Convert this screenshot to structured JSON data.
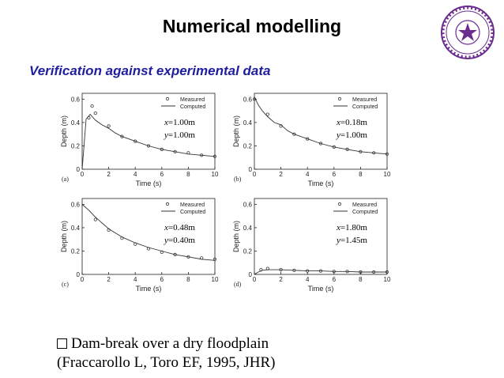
{
  "slide": {
    "title": "Numerical modelling",
    "subtitle": "Verification against experimental data",
    "bullet_line1": "Dam-break over a dry floodplain",
    "bullet_line2": "(Fraccarollo L, Toro EF, 1995, JHR)",
    "seal_icon": "university-seal-icon",
    "colors": {
      "subtitle": "#1f1f9e",
      "seal": "#6b2c8f"
    }
  },
  "chart_data": [
    {
      "type": "line",
      "panel": "(a)",
      "xlabel": "Time (s)",
      "ylabel": "Depth (m)",
      "xlim": [
        0,
        10
      ],
      "ylim": [
        0,
        0.65
      ],
      "xticks": [
        0,
        2,
        4,
        6,
        8,
        10
      ],
      "yticks": [
        0,
        0.2,
        0.4,
        0.6
      ],
      "legend_position": "top-right",
      "annotation": [
        "x=1.00m",
        "y=1.00m"
      ],
      "series": [
        {
          "name": "Measured",
          "marker": "circle",
          "x": [
            0.5,
            0.75,
            1,
            2,
            3,
            4,
            5,
            6,
            7,
            8,
            9,
            10
          ],
          "y": [
            0.44,
            0.54,
            0.48,
            0.37,
            0.28,
            0.24,
            0.2,
            0.17,
            0.15,
            0.14,
            0.12,
            0.11
          ]
        },
        {
          "name": "Computed",
          "style": "line",
          "x": [
            0,
            0.3,
            0.6,
            1,
            1.5,
            2,
            2.5,
            3,
            3.5,
            4,
            5,
            6,
            7,
            8,
            9,
            10
          ],
          "y": [
            0.0,
            0.43,
            0.47,
            0.42,
            0.38,
            0.35,
            0.31,
            0.28,
            0.26,
            0.24,
            0.2,
            0.17,
            0.15,
            0.13,
            0.12,
            0.11
          ]
        }
      ]
    },
    {
      "type": "line",
      "panel": "(b)",
      "xlabel": "Time (s)",
      "ylabel": "Depth (m)",
      "xlim": [
        0,
        10
      ],
      "ylim": [
        0,
        0.65
      ],
      "xticks": [
        0,
        2,
        4,
        6,
        8,
        10
      ],
      "yticks": [
        0,
        0.2,
        0.4,
        0.6
      ],
      "legend_position": "top-right",
      "annotation": [
        "x=0.18m",
        "y=1.00m"
      ],
      "series": [
        {
          "name": "Measured",
          "marker": "circle",
          "x": [
            0,
            1,
            2,
            3,
            4,
            5,
            6,
            7,
            8,
            9,
            10
          ],
          "y": [
            0.6,
            0.47,
            0.37,
            0.3,
            0.26,
            0.22,
            0.19,
            0.17,
            0.15,
            0.14,
            0.13
          ]
        },
        {
          "name": "Computed",
          "style": "line",
          "x": [
            0,
            0.3,
            0.6,
            1,
            1.5,
            2,
            2.5,
            3,
            3.5,
            4,
            5,
            6,
            7,
            8,
            9,
            10
          ],
          "y": [
            0.62,
            0.55,
            0.5,
            0.45,
            0.4,
            0.38,
            0.33,
            0.3,
            0.28,
            0.26,
            0.22,
            0.19,
            0.17,
            0.15,
            0.14,
            0.13
          ]
        }
      ]
    },
    {
      "type": "line",
      "panel": "(c)",
      "xlabel": "Time (s)",
      "ylabel": "Depth (m)",
      "xlim": [
        0,
        10
      ],
      "ylim": [
        0,
        0.65
      ],
      "xticks": [
        0,
        2,
        4,
        6,
        8,
        10
      ],
      "yticks": [
        0,
        0.2,
        0.4,
        0.6
      ],
      "legend_position": "top-right",
      "annotation": [
        "x=0.48m",
        "y=0.40m"
      ],
      "series": [
        {
          "name": "Measured",
          "marker": "circle",
          "x": [
            1,
            2,
            3,
            4,
            5,
            6,
            7,
            8,
            9,
            10
          ],
          "y": [
            0.47,
            0.38,
            0.31,
            0.26,
            0.22,
            0.19,
            0.17,
            0.15,
            0.14,
            0.13
          ]
        },
        {
          "name": "Computed",
          "style": "line",
          "x": [
            0,
            0.5,
            1,
            1.5,
            2,
            3,
            4,
            5,
            6,
            7,
            8,
            9,
            10
          ],
          "y": [
            0.6,
            0.55,
            0.49,
            0.44,
            0.39,
            0.32,
            0.27,
            0.23,
            0.2,
            0.17,
            0.15,
            0.13,
            0.12
          ]
        }
      ]
    },
    {
      "type": "line",
      "panel": "(d)",
      "xlabel": "Time (s)",
      "ylabel": "Depth (m)",
      "xlim": [
        0,
        10
      ],
      "ylim": [
        0,
        0.65
      ],
      "xticks": [
        0,
        2,
        4,
        6,
        8,
        10
      ],
      "yticks": [
        0,
        0.2,
        0.4,
        0.6
      ],
      "legend_position": "top-right",
      "annotation": [
        "x=1.80m",
        "y=1.45m"
      ],
      "series": [
        {
          "name": "Measured",
          "marker": "circle",
          "x": [
            0.5,
            1,
            2,
            3,
            4,
            5,
            6,
            7,
            8,
            9,
            10
          ],
          "y": [
            0.04,
            0.05,
            0.04,
            0.035,
            0.03,
            0.03,
            0.025,
            0.025,
            0.02,
            0.02,
            0.02
          ]
        },
        {
          "name": "Computed",
          "style": "line",
          "x": [
            0,
            0.3,
            0.6,
            1,
            2,
            3,
            4,
            5,
            6,
            7,
            8,
            9,
            10
          ],
          "y": [
            0.0,
            0.02,
            0.035,
            0.04,
            0.04,
            0.035,
            0.03,
            0.03,
            0.025,
            0.025,
            0.02,
            0.02,
            0.02
          ]
        }
      ]
    }
  ]
}
